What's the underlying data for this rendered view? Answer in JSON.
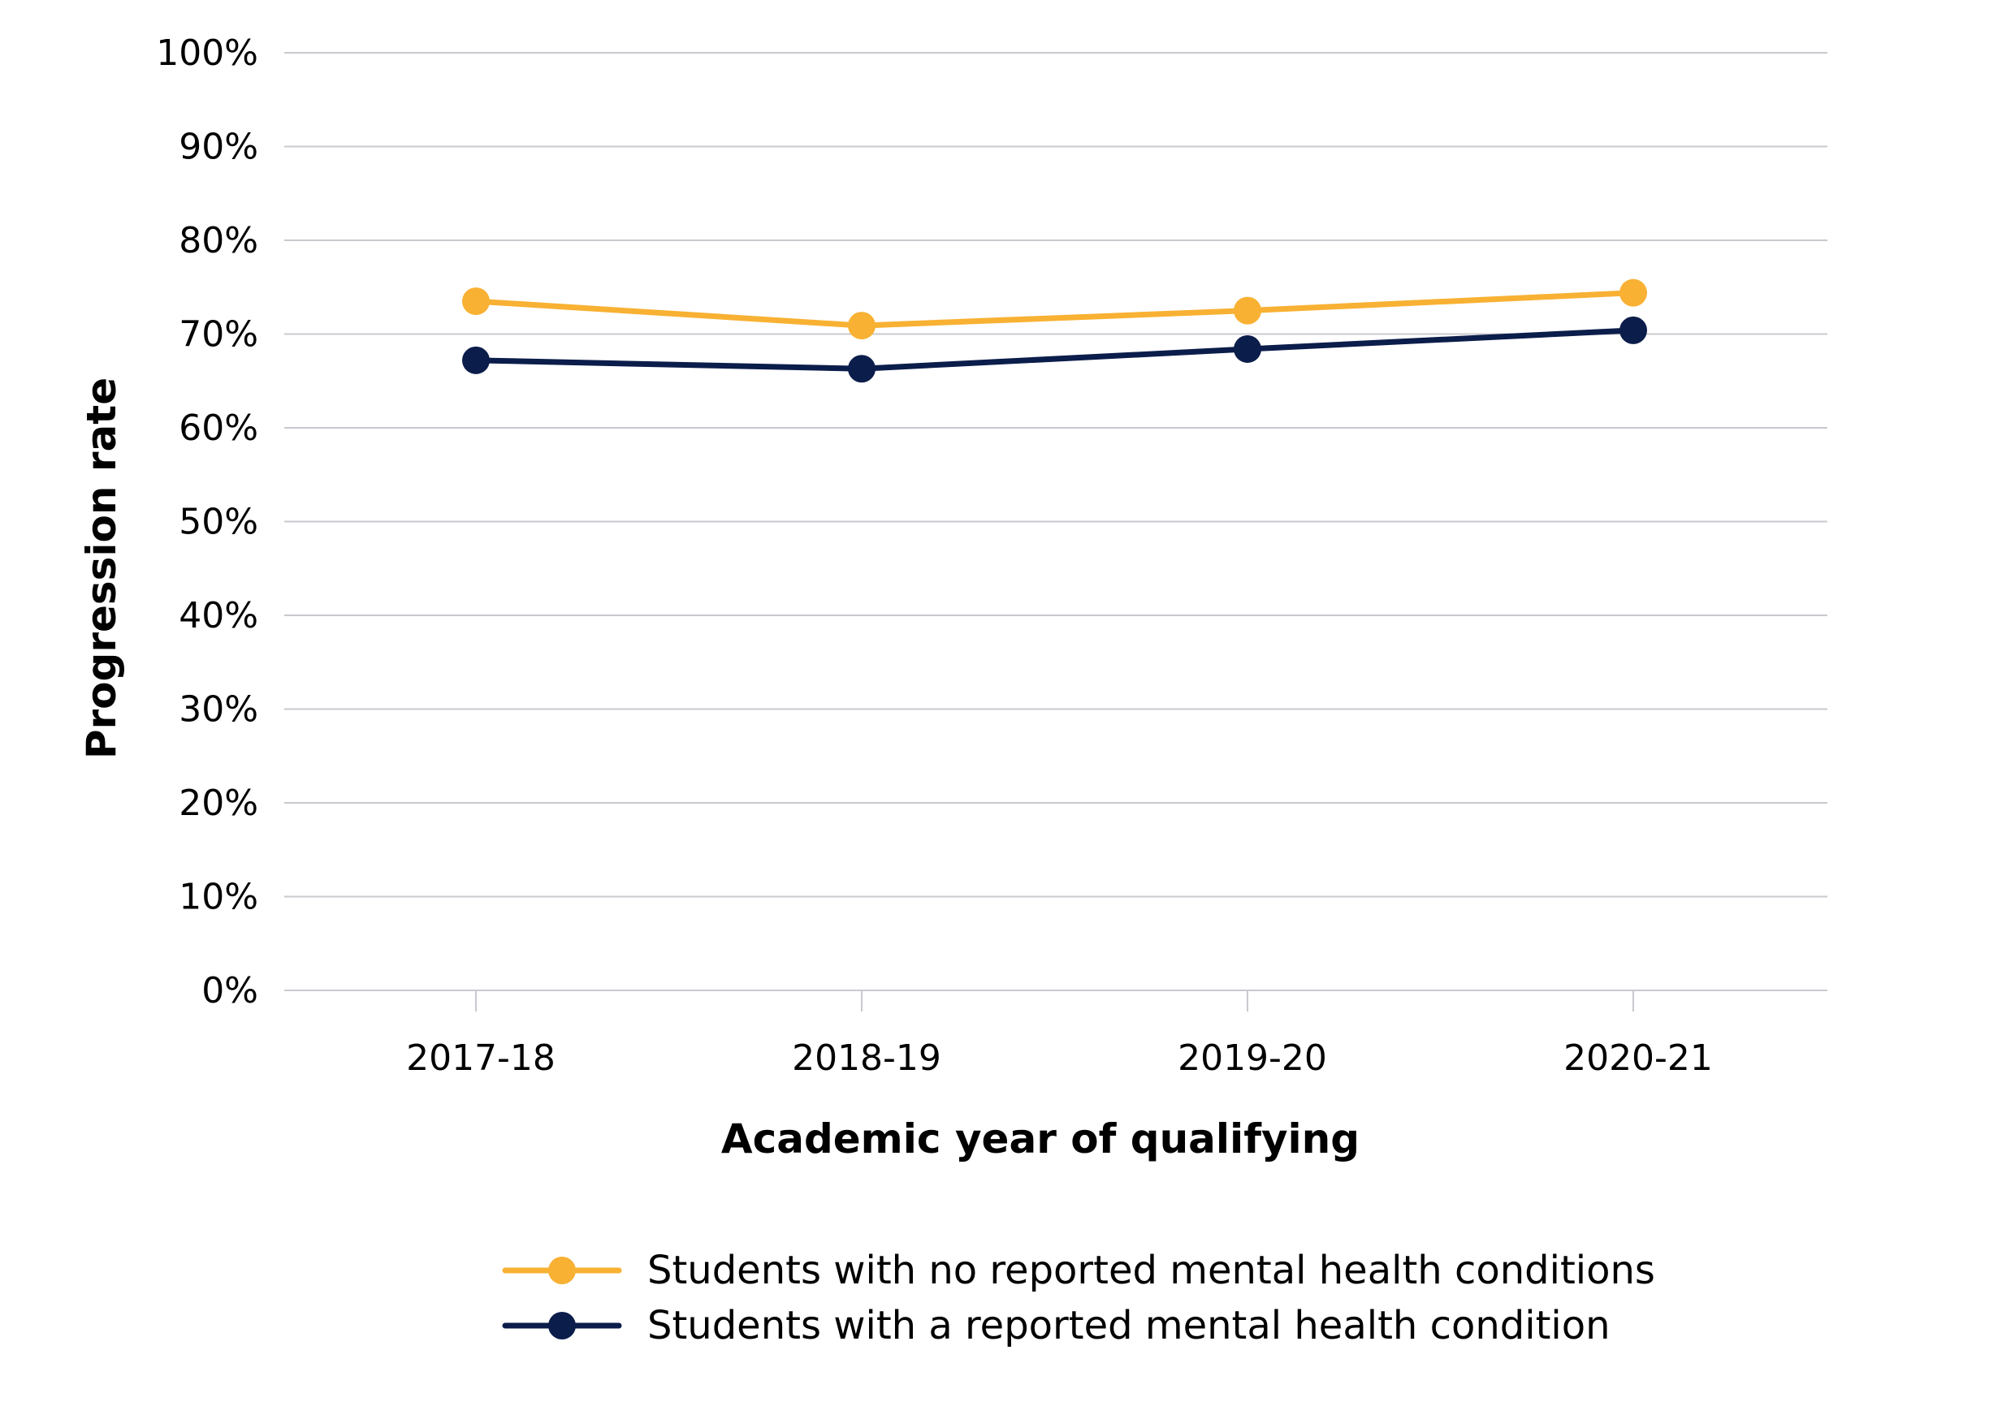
{
  "chart_data": {
    "type": "line",
    "categories": [
      "2017-18",
      "2018-19",
      "2019-20",
      "2020-21"
    ],
    "series": [
      {
        "name": "Students with no reported mental health conditions",
        "values": [
          73.5,
          70.9,
          72.5,
          74.4
        ],
        "color": "#F8B133"
      },
      {
        "name": "Students with a reported mental health condition",
        "values": [
          67.2,
          66.3,
          68.4,
          70.4
        ],
        "color": "#0B1D4A"
      }
    ],
    "xlabel": "Academic year of qualifying",
    "ylabel": "Progression rate",
    "ylim": [
      0,
      100
    ],
    "yticks": [
      "0%",
      "10%",
      "20%",
      "30%",
      "40%",
      "50%",
      "60%",
      "70%",
      "80%",
      "90%",
      "100%"
    ],
    "grid": true,
    "legend": "bottom-center",
    "colors": {
      "grid": "#C9C9CF",
      "axis": "#C9C9CF"
    }
  }
}
